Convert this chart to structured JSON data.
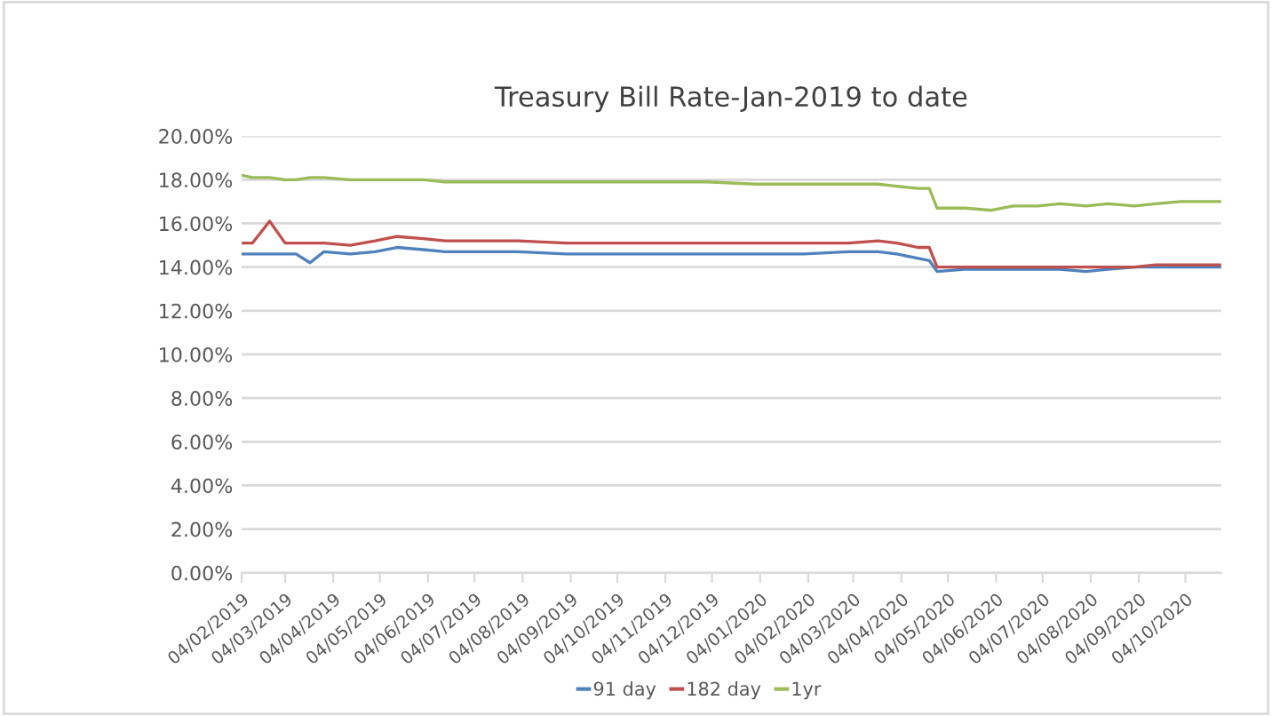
{
  "chart_data": {
    "type": "line",
    "title": "Treasury Bill Rate-Jan-2019 to date",
    "x": [
      "2019-02-04",
      "2019-02-11",
      "2019-02-22",
      "2019-03-04",
      "2019-03-11",
      "2019-03-20",
      "2019-03-29",
      "2019-04-15",
      "2019-05-01",
      "2019-05-15",
      "2019-06-01",
      "2019-06-15",
      "2019-07-01",
      "2019-08-01",
      "2019-09-01",
      "2019-10-01",
      "2019-11-01",
      "2019-12-01",
      "2020-01-01",
      "2020-02-01",
      "2020-03-01",
      "2020-03-20",
      "2020-04-01",
      "2020-04-15",
      "2020-04-22",
      "2020-04-27",
      "2020-05-15",
      "2020-06-01",
      "2020-06-15",
      "2020-07-01",
      "2020-07-15",
      "2020-08-01",
      "2020-08-15",
      "2020-09-01",
      "2020-09-15",
      "2020-10-01",
      "2020-10-27"
    ],
    "series": [
      {
        "name": "91 day",
        "color": "#4f81bd",
        "values": [
          14.6,
          14.6,
          14.6,
          14.6,
          14.6,
          14.2,
          14.7,
          14.6,
          14.7,
          14.9,
          14.8,
          14.7,
          14.7,
          14.7,
          14.6,
          14.6,
          14.6,
          14.6,
          14.6,
          14.6,
          14.7,
          14.7,
          14.6,
          14.4,
          14.3,
          13.8,
          13.9,
          13.9,
          13.9,
          13.9,
          13.9,
          13.8,
          13.9,
          14.0,
          14.0,
          14.0,
          14.0
        ]
      },
      {
        "name": "182 day",
        "color": "#c0504d",
        "values": [
          15.1,
          15.1,
          16.1,
          15.1,
          15.1,
          15.1,
          15.1,
          15.0,
          15.2,
          15.4,
          15.3,
          15.2,
          15.2,
          15.2,
          15.1,
          15.1,
          15.1,
          15.1,
          15.1,
          15.1,
          15.1,
          15.2,
          15.1,
          14.9,
          14.9,
          14.0,
          14.0,
          14.0,
          14.0,
          14.0,
          14.0,
          14.0,
          14.0,
          14.0,
          14.1,
          14.1,
          14.1
        ]
      },
      {
        "name": "1yr",
        "color": "#9bbb59",
        "values": [
          18.2,
          18.1,
          18.1,
          18.0,
          18.0,
          18.1,
          18.1,
          18.0,
          18.0,
          18.0,
          18.0,
          17.9,
          17.9,
          17.9,
          17.9,
          17.9,
          17.9,
          17.9,
          17.8,
          17.8,
          17.8,
          17.8,
          17.7,
          17.6,
          17.6,
          16.7,
          16.7,
          16.6,
          16.8,
          16.8,
          16.9,
          16.8,
          16.9,
          16.8,
          16.9,
          17.0,
          17.0
        ]
      }
    ],
    "xlim": [
      "2019-02-04",
      "2020-10-27"
    ],
    "xticks": [
      {
        "value": "2019-02-04",
        "label": "04/02/2019"
      },
      {
        "value": "2019-03-04",
        "label": "04/03/2019"
      },
      {
        "value": "2019-04-04",
        "label": "04/04/2019"
      },
      {
        "value": "2019-05-04",
        "label": "04/05/2019"
      },
      {
        "value": "2019-06-04",
        "label": "04/06/2019"
      },
      {
        "value": "2019-07-04",
        "label": "04/07/2019"
      },
      {
        "value": "2019-08-04",
        "label": "04/08/2019"
      },
      {
        "value": "2019-09-04",
        "label": "04/09/2019"
      },
      {
        "value": "2019-10-04",
        "label": "04/10/2019"
      },
      {
        "value": "2019-11-04",
        "label": "04/11/2019"
      },
      {
        "value": "2019-12-04",
        "label": "04/12/2019"
      },
      {
        "value": "2020-01-04",
        "label": "04/01/2020"
      },
      {
        "value": "2020-02-04",
        "label": "04/02/2020"
      },
      {
        "value": "2020-03-04",
        "label": "04/03/2020"
      },
      {
        "value": "2020-04-04",
        "label": "04/04/2020"
      },
      {
        "value": "2020-05-04",
        "label": "04/05/2020"
      },
      {
        "value": "2020-06-04",
        "label": "04/06/2020"
      },
      {
        "value": "2020-07-04",
        "label": "04/07/2020"
      },
      {
        "value": "2020-08-04",
        "label": "04/08/2020"
      },
      {
        "value": "2020-09-04",
        "label": "04/09/2020"
      },
      {
        "value": "2020-10-04",
        "label": "04/10/2020"
      }
    ],
    "ylim": [
      0,
      20
    ],
    "yticks": [
      {
        "value": 0,
        "label": "0.00%"
      },
      {
        "value": 2,
        "label": "2.00%"
      },
      {
        "value": 4,
        "label": "4.00%"
      },
      {
        "value": 6,
        "label": "6.00%"
      },
      {
        "value": 8,
        "label": "8.00%"
      },
      {
        "value": 10,
        "label": "10.00%"
      },
      {
        "value": 12,
        "label": "12.00%"
      },
      {
        "value": 14,
        "label": "14.00%"
      },
      {
        "value": 16,
        "label": "16.00%"
      },
      {
        "value": 18,
        "label": "18.00%"
      },
      {
        "value": 20,
        "label": "20.00%"
      }
    ],
    "grid": "y",
    "legend": "bottom",
    "marker": "none",
    "line_style": "solid"
  }
}
